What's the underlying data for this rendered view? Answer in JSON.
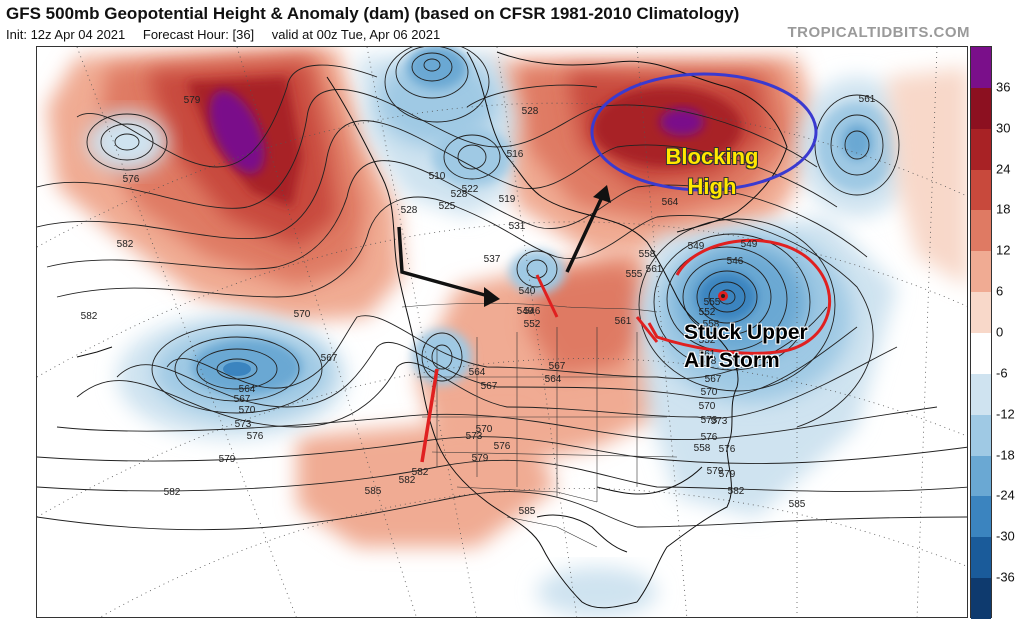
{
  "header": {
    "title": "GFS 500mb Geopotential Height & Anomaly (dam) (based on CFSR 1981-2010 Climatology)",
    "init": "Init: 12z Apr 04 2021",
    "forecast_hour": "Forecast Hour: [36]",
    "valid": "valid at 00z Tue, Apr 06 2021",
    "watermark": "TROPICALTIDBITS.COM"
  },
  "colorbar": {
    "ticks": [
      "36",
      "30",
      "24",
      "18",
      "12",
      "6",
      "0",
      "-6",
      "-12",
      "-18",
      "-24",
      "-30",
      "-36"
    ],
    "colors": [
      "#7a0f8a",
      "#8c1020",
      "#a82225",
      "#c8493c",
      "#df7a63",
      "#f0ab93",
      "#f8d8c9",
      "#ffffff",
      "#cfe3f0",
      "#9fc9e4",
      "#6aa8d3",
      "#3b84bf",
      "#1a5b9a",
      "#0e3a6e"
    ]
  },
  "annotations": {
    "blocking_line1": "Blocking",
    "blocking_line2": "High",
    "stuck_line1": "Stuck Upper",
    "stuck_line2": "Air Storm"
  },
  "contour_labels": [
    "579",
    "576",
    "582",
    "582",
    "582",
    "570",
    "567",
    "564",
    "567",
    "570",
    "573",
    "576",
    "579",
    "582",
    "585",
    "510",
    "516",
    "525",
    "522",
    "528",
    "528",
    "519",
    "531",
    "537",
    "540",
    "546",
    "552",
    "549",
    "555",
    "558",
    "561",
    "558",
    "552",
    "555",
    "546",
    "549",
    "561",
    "564",
    "567",
    "564",
    "567",
    "570",
    "573",
    "576",
    "579",
    "582",
    "570",
    "573",
    "576",
    "579",
    "585",
    "558",
    "561",
    "528",
    "570",
    "567",
    "564",
    "561",
    "549",
    "552",
    "558",
    "567",
    "570",
    "573",
    "576",
    "579",
    "582",
    "585"
  ]
}
